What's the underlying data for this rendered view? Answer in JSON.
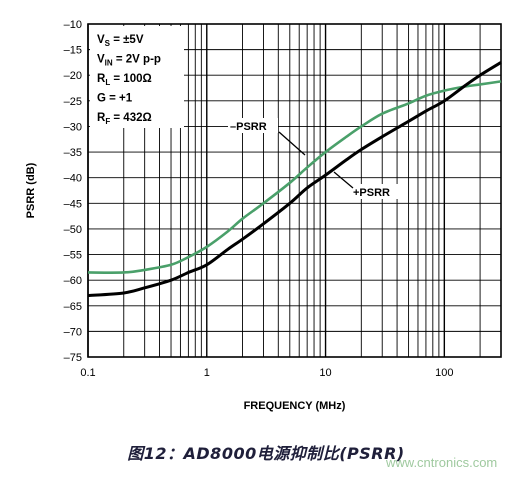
{
  "chart_data": {
    "type": "line",
    "xlabel": "FREQUENCY (MHz)",
    "ylabel": "PSRR (dB)",
    "xscale": "log",
    "xlim": [
      0.1,
      300
    ],
    "ylim": [
      -75,
      -10
    ],
    "grid": true,
    "x_ticks": [
      0.1,
      1,
      10,
      100
    ],
    "x_tick_labels": [
      "0.1",
      "1",
      "10",
      "100"
    ],
    "y_ticks": [
      -10,
      -15,
      -20,
      -25,
      -30,
      -35,
      -40,
      -45,
      -50,
      -55,
      -60,
      -65,
      -70,
      -75
    ],
    "y_tick_labels": [
      "–10",
      "–15",
      "–20",
      "–25",
      "–30",
      "–35",
      "–40",
      "–45",
      "–50",
      "–55",
      "–60",
      "–65",
      "–70",
      "–75"
    ],
    "series": [
      {
        "name": "+PSRR",
        "color": "#000000",
        "x": [
          0.1,
          0.2,
          0.3,
          0.5,
          0.7,
          1,
          1.5,
          2,
          3,
          5,
          7,
          10,
          15,
          20,
          30,
          50,
          70,
          100,
          150,
          200,
          300
        ],
        "y": [
          -63,
          -62.5,
          -61.5,
          -60,
          -58.5,
          -57,
          -54,
          -52,
          -49,
          -45,
          -42,
          -39.5,
          -36.5,
          -34.5,
          -32,
          -29,
          -27,
          -25,
          -22,
          -20,
          -17.5
        ]
      },
      {
        "name": "–PSRR",
        "color": "#4aa06a",
        "x": [
          0.1,
          0.2,
          0.3,
          0.5,
          0.7,
          1,
          1.5,
          2,
          3,
          5,
          7,
          10,
          15,
          20,
          30,
          50,
          70,
          100,
          150,
          200,
          300
        ],
        "y": [
          -58.5,
          -58.5,
          -58,
          -57,
          -55.5,
          -53.5,
          -50.5,
          -48,
          -45,
          -41,
          -38,
          -35,
          -32,
          -30,
          -27.5,
          -25.5,
          -24,
          -23,
          -22.2,
          -21.8,
          -21.2
        ]
      }
    ],
    "annotations": [
      {
        "text": "–PSRR"
      },
      {
        "text": "+PSRR"
      }
    ],
    "conditions": [
      {
        "main": "V",
        "sub": "S",
        "rest": " = ±5V"
      },
      {
        "main": "V",
        "sub": "IN",
        "rest": " = 2V p-p"
      },
      {
        "main": "R",
        "sub": "L",
        "rest": " = 100Ω"
      },
      {
        "main": "G = +1",
        "sub": "",
        "rest": ""
      },
      {
        "main": "R",
        "sub": "F",
        "rest": " = 432Ω"
      }
    ]
  },
  "caption": "图12：AD8000电源抑制比(PSRR)",
  "watermark": "www.cntronics.com"
}
